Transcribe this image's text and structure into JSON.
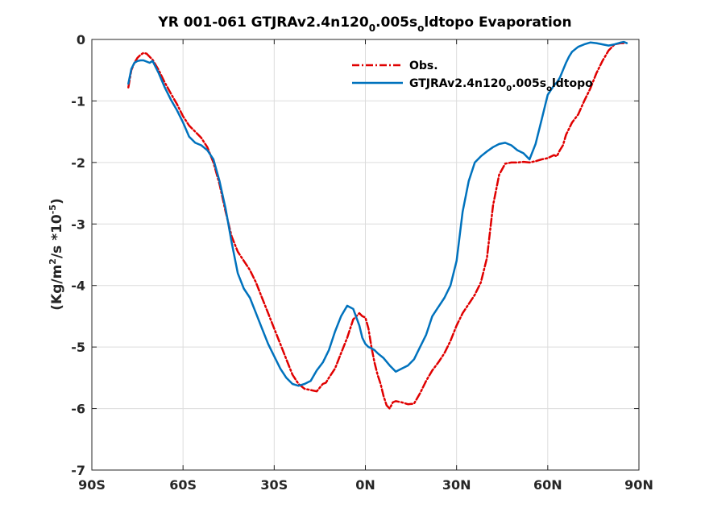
{
  "chart_data": {
    "type": "line",
    "title": "YR 001-061 GTJRAv2.4n120",
    "title_sub": "0",
    "title_rest": ".005s",
    "title_sub2": "o",
    "title_end": "ldtopo Evaporation",
    "ylabel_main": "(Kg/m",
    "ylabel_sup": "2",
    "ylabel_mid": "/s *10",
    "ylabel_sup2": "-5",
    "ylabel_end": ")",
    "xlim": [
      -90,
      90
    ],
    "ylim": [
      -7,
      0
    ],
    "grid": true,
    "legend_position": "top-right",
    "x_ticks": [
      -90,
      -60,
      -30,
      0,
      30,
      60,
      90
    ],
    "x_tick_labels": [
      "90S",
      "60S",
      "30S",
      "0N",
      "30N",
      "60N",
      "90N"
    ],
    "y_ticks": [
      0,
      -1,
      -2,
      -3,
      -4,
      -5,
      -6,
      -7
    ],
    "y_tick_labels": [
      "0",
      "-1",
      "-2",
      "-3",
      "-4",
      "-5",
      "-6",
      "-7"
    ],
    "series": [
      {
        "name": "Obs.",
        "color": "#e00000",
        "style": "dashdot",
        "x": [
          -78,
          -77,
          -76,
          -75,
          -74,
          -73,
          -72,
          -70,
          -68,
          -66,
          -64,
          -62,
          -60,
          -58,
          -56,
          -54,
          -52,
          -50,
          -48,
          -46,
          -44,
          -42,
          -40,
          -38,
          -36,
          -34,
          -32,
          -30,
          -28,
          -26,
          -24,
          -22,
          -20,
          -18,
          -16,
          -14,
          -13,
          -12,
          -10,
          -8,
          -6,
          -4,
          -2,
          -1,
          0,
          1,
          2,
          3,
          4,
          5,
          6,
          7,
          8,
          9,
          10,
          12,
          14,
          16,
          18,
          20,
          22,
          24,
          26,
          28,
          30,
          32,
          34,
          36,
          38,
          40,
          42,
          44,
          46,
          48,
          50,
          52,
          54,
          56,
          58,
          60,
          62,
          63,
          64,
          65,
          66,
          68,
          70,
          72,
          74,
          76,
          78,
          80,
          82,
          84,
          85
        ],
        "values": [
          -0.78,
          -0.5,
          -0.38,
          -0.3,
          -0.25,
          -0.22,
          -0.23,
          -0.33,
          -0.5,
          -0.7,
          -0.88,
          -1.05,
          -1.25,
          -1.4,
          -1.5,
          -1.6,
          -1.75,
          -2.0,
          -2.35,
          -2.8,
          -3.2,
          -3.45,
          -3.6,
          -3.75,
          -3.95,
          -4.2,
          -4.45,
          -4.7,
          -4.95,
          -5.2,
          -5.45,
          -5.6,
          -5.68,
          -5.7,
          -5.72,
          -5.6,
          -5.58,
          -5.5,
          -5.35,
          -5.1,
          -4.85,
          -4.55,
          -4.45,
          -4.5,
          -4.52,
          -4.7,
          -5.0,
          -5.25,
          -5.45,
          -5.6,
          -5.8,
          -5.95,
          -6.0,
          -5.9,
          -5.88,
          -5.9,
          -5.93,
          -5.92,
          -5.75,
          -5.55,
          -5.38,
          -5.25,
          -5.1,
          -4.9,
          -4.65,
          -4.45,
          -4.3,
          -4.15,
          -3.95,
          -3.55,
          -2.7,
          -2.2,
          -2.02,
          -2.0,
          -2.0,
          -1.99,
          -2.0,
          -1.98,
          -1.95,
          -1.93,
          -1.88,
          -1.9,
          -1.8,
          -1.72,
          -1.55,
          -1.35,
          -1.22,
          -1.0,
          -0.8,
          -0.55,
          -0.35,
          -0.18,
          -0.08,
          -0.06,
          -0.06
        ]
      },
      {
        "name": "GTJRAv2.4n120",
        "name_sub": "0",
        "name_rest": ".005s",
        "name_sub2": "o",
        "name_end": "ldtopo",
        "color": "#0072bd",
        "style": "solid",
        "x": [
          -78,
          -77,
          -76,
          -75,
          -74,
          -73,
          -72,
          -71,
          -70,
          -68,
          -66,
          -64,
          -62,
          -60,
          -58,
          -56,
          -54,
          -52,
          -50,
          -48,
          -46,
          -44,
          -42,
          -40,
          -38,
          -36,
          -34,
          -32,
          -30,
          -28,
          -26,
          -24,
          -22,
          -20,
          -18,
          -16,
          -14,
          -13,
          -12,
          -10,
          -8,
          -6,
          -4,
          -2,
          -1,
          0,
          1,
          2,
          3,
          4,
          6,
          8,
          10,
          12,
          14,
          16,
          17,
          18,
          20,
          22,
          24,
          26,
          28,
          30,
          32,
          34,
          36,
          38,
          40,
          42,
          44,
          46,
          48,
          50,
          52,
          54,
          56,
          58,
          60,
          62,
          63,
          64,
          65,
          66,
          67,
          68,
          70,
          72,
          74,
          76,
          78,
          80,
          82,
          84,
          85,
          86
        ],
        "values": [
          -0.72,
          -0.48,
          -0.38,
          -0.35,
          -0.34,
          -0.34,
          -0.36,
          -0.38,
          -0.35,
          -0.55,
          -0.78,
          -0.98,
          -1.15,
          -1.35,
          -1.58,
          -1.68,
          -1.72,
          -1.8,
          -1.95,
          -2.3,
          -2.75,
          -3.3,
          -3.8,
          -4.05,
          -4.2,
          -4.45,
          -4.7,
          -4.95,
          -5.15,
          -5.35,
          -5.5,
          -5.6,
          -5.63,
          -5.6,
          -5.55,
          -5.38,
          -5.25,
          -5.15,
          -5.05,
          -4.75,
          -4.5,
          -4.33,
          -4.38,
          -4.65,
          -4.85,
          -4.95,
          -5.0,
          -5.02,
          -5.05,
          -5.1,
          -5.18,
          -5.3,
          -5.4,
          -5.35,
          -5.3,
          -5.2,
          -5.1,
          -5.0,
          -4.8,
          -4.5,
          -4.35,
          -4.2,
          -4.0,
          -3.6,
          -2.8,
          -2.3,
          -2.0,
          -1.9,
          -1.82,
          -1.75,
          -1.7,
          -1.68,
          -1.72,
          -1.8,
          -1.85,
          -1.95,
          -1.7,
          -1.3,
          -0.9,
          -0.75,
          -0.7,
          -0.62,
          -0.5,
          -0.38,
          -0.28,
          -0.2,
          -0.12,
          -0.08,
          -0.05,
          -0.06,
          -0.08,
          -0.1,
          -0.08,
          -0.05,
          -0.04,
          -0.06
        ]
      }
    ]
  }
}
